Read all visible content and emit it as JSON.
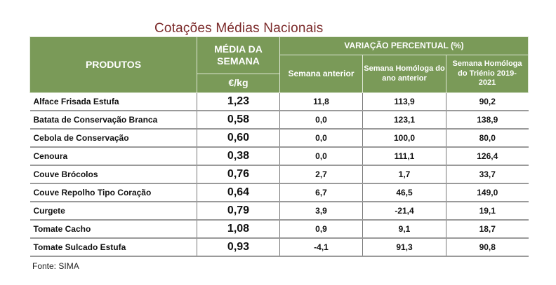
{
  "title": "Cotações Médias Nacionais",
  "header": {
    "produtos": "PRODUTOS",
    "media": "MÉDIA DA SEMANA",
    "unit": "€/kg",
    "variacao": "VARIAÇÃO PERCENTUAL (%)",
    "col1": "Semana anterior",
    "col2": "Semana Homóloga do ano anterior",
    "col3": "Semana Homóloga do Triénio 2019-2021"
  },
  "rows": [
    {
      "produto": "Alface Frisada Estufa",
      "preco": "1,23",
      "v1": "11,8",
      "v2": "113,9",
      "v3": "90,2"
    },
    {
      "produto": "Batata de Conservação Branca",
      "preco": "0,58",
      "v1": "0,0",
      "v2": "123,1",
      "v3": "138,9"
    },
    {
      "produto": "Cebola de Conservação",
      "preco": "0,60",
      "v1": "0,0",
      "v2": "100,0",
      "v3": "80,0"
    },
    {
      "produto": "Cenoura",
      "preco": "0,38",
      "v1": "0,0",
      "v2": "111,1",
      "v3": "126,4"
    },
    {
      "produto": "Couve Brócolos",
      "preco": "0,76",
      "v1": "2,7",
      "v2": "1,7",
      "v3": "33,7"
    },
    {
      "produto": "Couve Repolho Tipo Coração",
      "preco": "0,64",
      "v1": "6,7",
      "v2": "46,5",
      "v3": "149,0"
    },
    {
      "produto": "Curgete",
      "preco": "0,79",
      "v1": "3,9",
      "v2": "-21,4",
      "v3": "19,1"
    },
    {
      "produto": "Tomate Cacho",
      "preco": "1,08",
      "v1": "0,9",
      "v2": "9,1",
      "v3": "18,7"
    },
    {
      "produto": "Tomate Sulcado Estufa",
      "preco": "0,93",
      "v1": "-4,1",
      "v2": "91,3",
      "v3": "90,8"
    }
  ],
  "source": "Fonte: SIMA"
}
